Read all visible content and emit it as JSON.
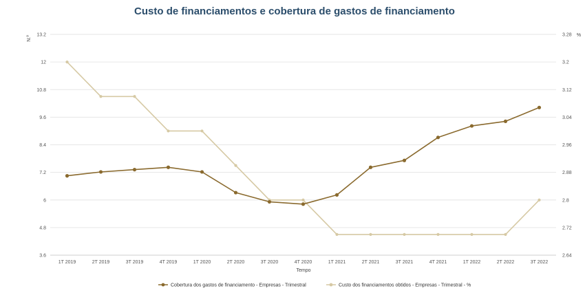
{
  "chart_data": {
    "type": "line",
    "title": "Custo de financiamentos e cobertura de gastos de financiamento",
    "xlabel": "Tempo",
    "ylabel_left": "N.º",
    "ylabel_right": "%",
    "categories": [
      "1T 2019",
      "2T 2019",
      "3T 2019",
      "4T 2019",
      "1T 2020",
      "2T 2020",
      "3T 2020",
      "4T 2020",
      "1T 2021",
      "2T 2021",
      "3T 2021",
      "4T 2021",
      "1T 2022",
      "2T 2022",
      "3T 2022"
    ],
    "y_left_ticks": [
      "3.6",
      "4.8",
      "6",
      "7.2",
      "8.4",
      "9.6",
      "10.8",
      "12",
      "13.2"
    ],
    "y_right_ticks": [
      "2.64",
      "2.72",
      "2.8",
      "2.88",
      "2.96",
      "3.04",
      "3.12",
      "3.2",
      "3.28"
    ],
    "ylim_left": [
      3.6,
      13.2
    ],
    "ylim_right": [
      2.64,
      3.28
    ],
    "grid": true,
    "legend_position": "bottom-center",
    "series": [
      {
        "name": "Cobertura dos gastos de financiamento - Empresas - Trimestral",
        "axis": "left",
        "color": "#8a6a2e",
        "values": [
          7.05,
          7.22,
          7.32,
          7.42,
          7.22,
          6.32,
          5.92,
          5.82,
          6.22,
          7.42,
          7.72,
          8.72,
          9.22,
          9.42,
          10.02
        ]
      },
      {
        "name": "Custo dos financiamentos obtidos - Empresas - Trimestral - %",
        "axis": "right",
        "color": "#d6c9a4",
        "values": [
          3.2,
          3.1,
          3.1,
          3.0,
          3.0,
          2.9,
          2.8,
          2.8,
          2.7,
          2.7,
          2.7,
          2.7,
          2.7,
          2.7,
          2.8
        ]
      }
    ]
  },
  "colors": {
    "title": "#2b4d6b",
    "grid": "#e6e6e6",
    "axis": "#cfcfcf"
  }
}
